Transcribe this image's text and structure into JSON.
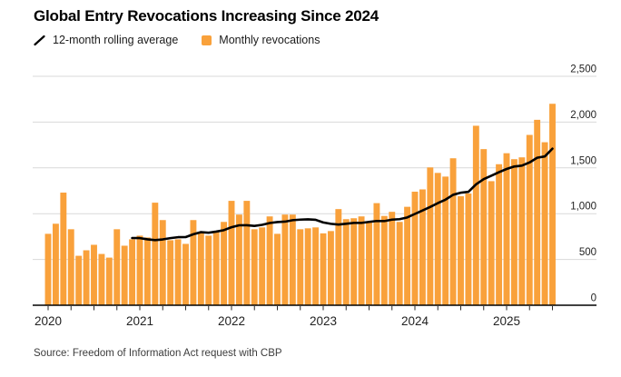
{
  "title": "Global Entry Revocations Increasing Since 2024",
  "legend": {
    "rolling_average_label": "12-month rolling average",
    "monthly_label": "Monthly revocations"
  },
  "source_note": "Source: Freedom of Information Act request with CBP",
  "colors": {
    "bar": "#f9a13b",
    "line": "#000000",
    "grid": "#d9d9d9",
    "axis": "#000000",
    "tick": "#2b2b2b",
    "axis_text": "#222222",
    "background": "#ffffff"
  },
  "chart_data": {
    "type": "bar",
    "title": "Global Entry Revocations Increasing Since 2024",
    "x_range_months": [
      "2020-01",
      "2025-07"
    ],
    "x_year_labels": [
      "2020",
      "2021",
      "2022",
      "2023",
      "2024",
      "2025"
    ],
    "x_tick_interval_months": 3,
    "ylim": [
      0,
      2500
    ],
    "y_ticks": [
      0,
      500,
      1000,
      1500,
      2000,
      2500
    ],
    "y_tick_labels": [
      "0",
      "500",
      "1,000",
      "1,500",
      "2,000",
      "2,500"
    ],
    "grid": true,
    "legend_position": "top-left",
    "series": [
      {
        "name": "Monthly revocations",
        "type": "bar",
        "values": [
          780,
          890,
          1230,
          830,
          540,
          600,
          660,
          560,
          520,
          830,
          650,
          720,
          760,
          740,
          1120,
          930,
          710,
          720,
          670,
          930,
          790,
          760,
          800,
          910,
          1140,
          990,
          1140,
          830,
          850,
          970,
          780,
          990,
          990,
          830,
          840,
          850,
          785,
          810,
          1050,
          940,
          950,
          970,
          910,
          1115,
          975,
          1020,
          910,
          1075,
          1240,
          1265,
          1505,
          1445,
          1405,
          1605,
          1190,
          1220,
          1960,
          1705,
          1355,
          1540,
          1660,
          1595,
          1615,
          1860,
          2025,
          1780,
          2200
        ]
      },
      {
        "name": "12-month rolling average",
        "type": "line",
        "values": [
          null,
          null,
          null,
          null,
          null,
          null,
          null,
          null,
          null,
          null,
          null,
          734,
          733,
          720,
          711,
          719,
          733,
          743,
          744,
          775,
          798,
          792,
          804,
          820,
          852,
          873,
          874,
          866,
          878,
          898,
          908,
          913,
          929,
          935,
          938,
          933,
          904,
          889,
          881,
          890,
          899,
          899,
          910,
          920,
          919,
          935,
          940,
          959,
          997,
          1035,
          1073,
          1115,
          1153,
          1206,
          1229,
          1238,
          1320,
          1377,
          1414,
          1453,
          1488,
          1515,
          1525,
          1559,
          1611,
          1625,
          1710
        ]
      }
    ]
  }
}
